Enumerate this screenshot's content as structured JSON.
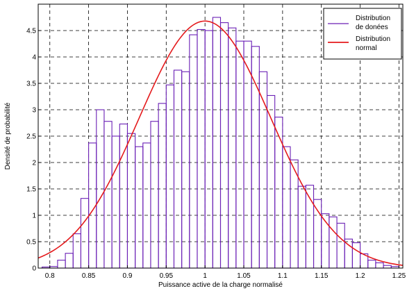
{
  "chart_data": {
    "type": "bar",
    "xlabel": "Puissance active de la charge normalisé",
    "ylabel": "Densité de probabilité",
    "xlim": [
      0.785,
      1.255
    ],
    "ylim": [
      0,
      5
    ],
    "x_ticks": [
      "0.8",
      "0.85",
      "0.9",
      "0.95",
      "1",
      "1.05",
      "1.1",
      "1.15",
      "1.2",
      "1.25"
    ],
    "y_ticks": [
      "0",
      "0.5",
      "1",
      "1.5",
      "2",
      "2.5",
      "3",
      "3.5",
      "4",
      "4.5"
    ],
    "grid": true,
    "grid_style": "dashed",
    "legend_position": "top-right",
    "series": [
      {
        "name": "Distribution de donées",
        "type": "histogram",
        "color": "#6a1fb5",
        "bin_width": 0.01,
        "bin_start": 0.78,
        "values": [
          0.0,
          0.02,
          0.03,
          0.15,
          0.28,
          0.65,
          1.32,
          2.37,
          3.0,
          2.78,
          2.5,
          2.73,
          2.55,
          2.3,
          2.37,
          2.78,
          3.12,
          3.47,
          3.75,
          3.72,
          4.42,
          4.52,
          4.5,
          4.75,
          4.65,
          4.55,
          4.3,
          4.3,
          4.2,
          3.72,
          3.27,
          2.86,
          2.3,
          2.05,
          1.55,
          1.57,
          1.3,
          1.03,
          0.97,
          0.85,
          0.55,
          0.48,
          0.27,
          0.15,
          0.1,
          0.05,
          0.03
        ]
      },
      {
        "name": "Distribution normal",
        "type": "line",
        "color": "#e41a1c",
        "mean": 1.0,
        "std": 0.085,
        "peak": 4.68
      }
    ]
  }
}
